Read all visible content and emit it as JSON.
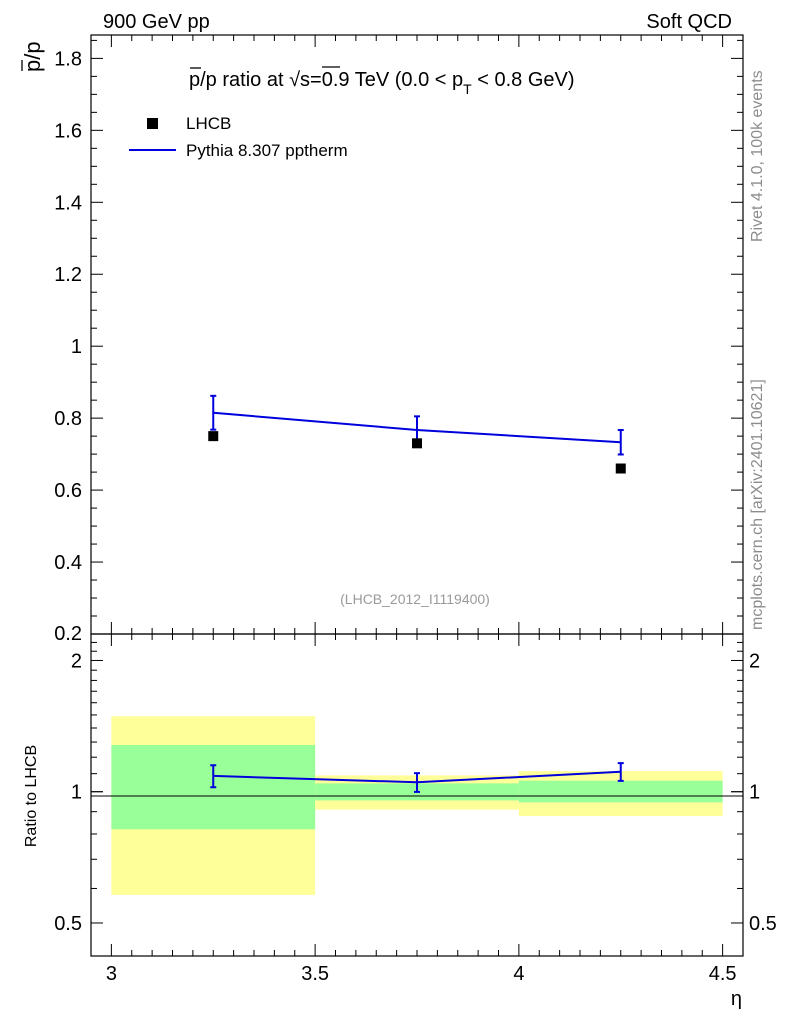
{
  "header": {
    "left": "900 GeV pp",
    "right": "Soft QCD"
  },
  "side_labels": {
    "rivet": "Rivet 4.1.0,  100k events",
    "mcplots": "mcplots.cern.ch [arXiv:2401.10621]"
  },
  "colors": {
    "mc_line": "#0000dd",
    "band_inner": "#99ff99",
    "band_outer": "#ffff99",
    "data": "#000000"
  },
  "chart_data": [
    {
      "type": "scatter",
      "panel": "main",
      "title_parts": {
        "pbar": "p",
        "after_pbar": "/p ratio at ",
        "sqrt": "√s",
        "energy": "=0.9 TeV (0.0 < p",
        "sub": "T",
        "tail": " < 0.8 GeV)"
      },
      "ylabel_parts": {
        "pbar": "p",
        "tail": "/p"
      },
      "watermark": "(LHCB_2012_I1119400)",
      "xlim": [
        2.95,
        4.55
      ],
      "ylim": [
        0.2,
        1.865
      ],
      "yticks": [
        0.4,
        0.6,
        0.8,
        1,
        1.2,
        1.4,
        1.6,
        1.8
      ],
      "ytick_labels": [
        "0.4",
        "0.6",
        "0.8",
        "1",
        "1.2",
        "1.4",
        "1.6",
        "1.8"
      ],
      "cut_label": "0.2",
      "legend": {
        "position": "top-left",
        "entries": [
          "LHCB",
          "Pythia 8.307 pptherm"
        ]
      },
      "series": [
        {
          "name": "LHCB",
          "x": [
            3.25,
            3.75,
            4.25
          ],
          "y": [
            0.75,
            0.73,
            0.66
          ]
        },
        {
          "name": "Pythia 8.307 pptherm",
          "x": [
            3.25,
            3.75,
            4.25
          ],
          "y": [
            0.815,
            0.767,
            0.733
          ],
          "yerr": [
            0.047,
            0.038,
            0.034
          ]
        }
      ]
    },
    {
      "type": "line",
      "panel": "ratio",
      "ylabel": "Ratio to LHCB",
      "xlabel": "η",
      "xlim": [
        2.95,
        4.55
      ],
      "ylim": [
        0.42,
        2.3
      ],
      "yscale": "log",
      "yticks": [
        0.5,
        1,
        2
      ],
      "ytick_labels": [
        "0.5",
        "1",
        "2"
      ],
      "xticks": [
        3,
        3.5,
        4,
        4.5
      ],
      "xtick_labels": [
        "3",
        "3.5",
        "4",
        "4.5"
      ],
      "bands": [
        {
          "x0": 3.0,
          "x1": 3.5,
          "inner": [
            0.82,
            1.28
          ],
          "outer": [
            0.58,
            1.49
          ]
        },
        {
          "x0": 3.5,
          "x1": 4.0,
          "inner": [
            0.955,
            1.045
          ],
          "outer": [
            0.91,
            1.09
          ]
        },
        {
          "x0": 4.0,
          "x1": 4.5,
          "inner": [
            0.945,
            1.06
          ],
          "outer": [
            0.88,
            1.115
          ]
        }
      ],
      "series": [
        {
          "name": "Pythia 8.307 pptherm",
          "x": [
            3.25,
            3.75,
            4.25
          ],
          "y": [
            1.087,
            1.051,
            1.111
          ],
          "yerr": [
            0.063,
            0.052,
            0.052
          ]
        }
      ]
    }
  ]
}
